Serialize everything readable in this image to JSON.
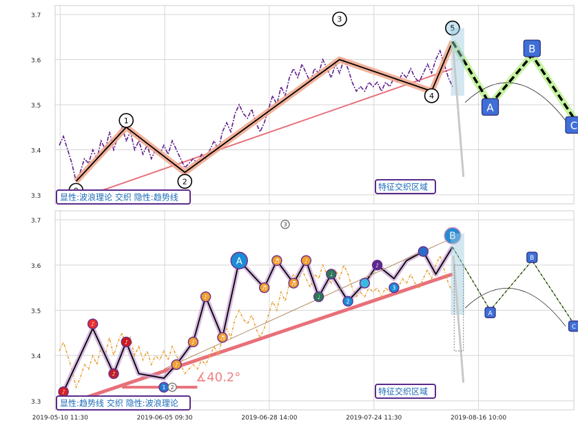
{
  "chart_data": [
    {
      "type": "line",
      "panel": "top",
      "ylim": [
        3.28,
        3.72
      ],
      "yticks": [
        3.3,
        3.4,
        3.5,
        3.6,
        3.7
      ],
      "grid": true,
      "series": [
        {
          "key": "price",
          "values": [
            [
              0.5,
              3.41
            ],
            [
              1,
              3.43
            ],
            [
              1.5,
              3.4
            ],
            [
              2,
              3.37
            ],
            [
              2.5,
              3.33
            ],
            [
              3,
              3.35
            ],
            [
              3.5,
              3.38
            ],
            [
              4,
              3.37
            ],
            [
              4.5,
              3.4
            ],
            [
              5,
              3.38
            ],
            [
              5.5,
              3.42
            ],
            [
              6,
              3.4
            ],
            [
              6.5,
              3.44
            ],
            [
              7,
              3.4
            ],
            [
              7.5,
              3.43
            ],
            [
              8,
              3.45
            ],
            [
              8.5,
              3.42
            ],
            [
              9,
              3.44
            ],
            [
              9.5,
              3.4
            ],
            [
              10,
              3.42
            ],
            [
              10.5,
              3.39
            ],
            [
              11,
              3.41
            ],
            [
              11.5,
              3.38
            ],
            [
              12,
              3.4
            ],
            [
              12.5,
              3.39
            ],
            [
              13,
              3.41
            ],
            [
              13.5,
              3.39
            ],
            [
              14,
              3.42
            ],
            [
              14.5,
              3.4
            ],
            [
              15,
              3.38
            ],
            [
              15.5,
              3.36
            ],
            [
              16,
              3.37
            ],
            [
              16.5,
              3.38
            ],
            [
              17,
              3.37
            ],
            [
              17.5,
              3.39
            ],
            [
              18,
              3.38
            ],
            [
              18.5,
              3.4
            ],
            [
              19,
              3.42
            ],
            [
              19.5,
              3.4
            ],
            [
              20,
              3.44
            ],
            [
              20.5,
              3.46
            ],
            [
              21,
              3.44
            ],
            [
              21.5,
              3.48
            ],
            [
              22,
              3.5
            ],
            [
              22.5,
              3.48
            ],
            [
              23,
              3.47
            ],
            [
              23.5,
              3.49
            ],
            [
              24,
              3.46
            ],
            [
              24.5,
              3.44
            ],
            [
              25,
              3.46
            ],
            [
              25.5,
              3.49
            ],
            [
              26,
              3.52
            ],
            [
              26.5,
              3.5
            ],
            [
              27,
              3.54
            ],
            [
              27.5,
              3.52
            ],
            [
              28,
              3.56
            ],
            [
              28.5,
              3.58
            ],
            [
              29,
              3.56
            ],
            [
              29.5,
              3.59
            ],
            [
              30,
              3.57
            ],
            [
              30.5,
              3.55
            ],
            [
              31,
              3.58
            ],
            [
              31.5,
              3.57
            ],
            [
              32,
              3.6
            ],
            [
              32.5,
              3.58
            ],
            [
              33,
              3.56
            ],
            [
              33.5,
              3.59
            ],
            [
              34,
              3.57
            ],
            [
              34.5,
              3.6
            ],
            [
              35,
              3.58
            ],
            [
              35.5,
              3.55
            ],
            [
              36,
              3.53
            ],
            [
              36.5,
              3.54
            ],
            [
              37,
              3.53
            ],
            [
              37.5,
              3.55
            ],
            [
              38,
              3.54
            ],
            [
              38.5,
              3.55
            ],
            [
              39,
              3.53
            ],
            [
              39.5,
              3.55
            ],
            [
              40,
              3.54
            ],
            [
              40.5,
              3.56
            ],
            [
              41,
              3.55
            ],
            [
              41.5,
              3.57
            ],
            [
              42,
              3.56
            ],
            [
              42.5,
              3.58
            ],
            [
              43,
              3.56
            ],
            [
              43.5,
              3.55
            ],
            [
              44,
              3.57
            ],
            [
              44.5,
              3.59
            ],
            [
              45,
              3.57
            ],
            [
              45.5,
              3.6
            ],
            [
              46,
              3.62
            ],
            [
              46.5,
              3.59
            ],
            [
              47,
              3.56
            ],
            [
              47.5,
              3.54
            ]
          ]
        }
      ],
      "wave": {
        "x": [
          2.5,
          8.5,
          15.5,
          34,
          45,
          47.5
        ],
        "y": [
          3.33,
          3.45,
          3.35,
          3.6,
          3.53,
          3.64
        ],
        "labels": [
          "0",
          "1",
          "2",
          "3",
          "4",
          "5"
        ]
      },
      "wave_label_y": [
        3.31,
        3.465,
        3.33,
        3.69,
        3.52,
        3.67
      ],
      "forecast": {
        "x": [
          47.5,
          52,
          57,
          62
        ],
        "y": [
          3.64,
          3.5,
          3.61,
          3.47
        ],
        "labels": [
          "A",
          "B",
          "C"
        ],
        "label_y": [
          3.495,
          3.625,
          3.455
        ]
      },
      "trend": {
        "x": [
          2.5,
          47.5
        ],
        "y": [
          3.29,
          3.58
        ]
      },
      "arc": {
        "cx": 55,
        "cy": 3.505,
        "rx": 6,
        "ry": 0.055
      },
      "zone_drop": {
        "x": [
          47.8,
          48.8
        ],
        "y": [
          3.6,
          3.34
        ]
      },
      "legend_text": "显性:波浪理论 交织 隐性:趋势线",
      "zone_text": "特征交织区域"
    },
    {
      "type": "line",
      "panel": "bottom",
      "ylim": [
        3.28,
        3.72
      ],
      "yticks": [
        3.3,
        3.4,
        3.5,
        3.6,
        3.7
      ],
      "xtick_labels": [
        "2019-05-10 11:30",
        "2019-06-05 09:30",
        "2019-06-28 14:00",
        "2019-07-24 11:30",
        "2019-08-16 10:00"
      ],
      "xtick_positions": [
        0,
        12.5,
        25,
        37.5,
        50
      ],
      "grid": true,
      "series": [
        {
          "key": "price",
          "values": [
            [
              0.5,
              3.41
            ],
            [
              1,
              3.43
            ],
            [
              1.5,
              3.4
            ],
            [
              2,
              3.37
            ],
            [
              2.5,
              3.33
            ],
            [
              3,
              3.35
            ],
            [
              3.5,
              3.38
            ],
            [
              4,
              3.37
            ],
            [
              4.5,
              3.4
            ],
            [
              5,
              3.38
            ],
            [
              5.5,
              3.42
            ],
            [
              6,
              3.4
            ],
            [
              6.5,
              3.44
            ],
            [
              7,
              3.4
            ],
            [
              7.5,
              3.43
            ],
            [
              8,
              3.45
            ],
            [
              8.5,
              3.42
            ],
            [
              9,
              3.44
            ],
            [
              9.5,
              3.4
            ],
            [
              10,
              3.42
            ],
            [
              10.5,
              3.39
            ],
            [
              11,
              3.41
            ],
            [
              11.5,
              3.38
            ],
            [
              12,
              3.4
            ],
            [
              12.5,
              3.39
            ],
            [
              13,
              3.41
            ],
            [
              13.5,
              3.39
            ],
            [
              14,
              3.42
            ],
            [
              14.5,
              3.4
            ],
            [
              15,
              3.38
            ],
            [
              15.5,
              3.36
            ],
            [
              16,
              3.37
            ],
            [
              16.5,
              3.38
            ],
            [
              17,
              3.37
            ],
            [
              17.5,
              3.39
            ],
            [
              18,
              3.38
            ],
            [
              18.5,
              3.4
            ],
            [
              19,
              3.42
            ],
            [
              19.5,
              3.4
            ],
            [
              20,
              3.44
            ],
            [
              20.5,
              3.46
            ],
            [
              21,
              3.44
            ],
            [
              21.5,
              3.48
            ],
            [
              22,
              3.5
            ],
            [
              22.5,
              3.48
            ],
            [
              23,
              3.47
            ],
            [
              23.5,
              3.49
            ],
            [
              24,
              3.46
            ],
            [
              24.5,
              3.44
            ],
            [
              25,
              3.46
            ],
            [
              25.5,
              3.49
            ],
            [
              26,
              3.52
            ],
            [
              26.5,
              3.5
            ],
            [
              27,
              3.54
            ],
            [
              27.5,
              3.52
            ],
            [
              28,
              3.56
            ],
            [
              28.5,
              3.58
            ],
            [
              29,
              3.56
            ],
            [
              29.5,
              3.59
            ],
            [
              30,
              3.57
            ],
            [
              30.5,
              3.55
            ],
            [
              31,
              3.58
            ],
            [
              31.5,
              3.57
            ],
            [
              32,
              3.6
            ],
            [
              32.5,
              3.58
            ],
            [
              33,
              3.56
            ],
            [
              33.5,
              3.59
            ],
            [
              34,
              3.57
            ],
            [
              34.5,
              3.6
            ],
            [
              35,
              3.58
            ],
            [
              35.5,
              3.55
            ],
            [
              36,
              3.53
            ],
            [
              36.5,
              3.54
            ],
            [
              37,
              3.53
            ],
            [
              37.5,
              3.55
            ],
            [
              38,
              3.54
            ],
            [
              38.5,
              3.55
            ],
            [
              39,
              3.53
            ],
            [
              39.5,
              3.55
            ],
            [
              40,
              3.54
            ],
            [
              40.5,
              3.56
            ],
            [
              41,
              3.55
            ],
            [
              41.5,
              3.57
            ],
            [
              42,
              3.56
            ],
            [
              42.5,
              3.58
            ],
            [
              43,
              3.56
            ],
            [
              43.5,
              3.55
            ],
            [
              44,
              3.57
            ],
            [
              44.5,
              3.59
            ],
            [
              45,
              3.57
            ],
            [
              45.5,
              3.6
            ],
            [
              46,
              3.62
            ],
            [
              46.5,
              3.59
            ],
            [
              47,
              3.56
            ],
            [
              47.5,
              3.54
            ]
          ]
        }
      ],
      "zigzag": {
        "x": [
          1,
          4.5,
          7,
          8.5,
          10,
          13,
          14.5,
          16.5,
          18,
          20,
          22,
          25,
          26.5,
          28.5,
          30,
          31.5,
          33,
          35,
          37,
          38.5,
          40.5,
          42,
          44,
          45.5,
          47.5
        ],
        "y": [
          3.32,
          3.46,
          3.36,
          3.43,
          3.36,
          3.35,
          3.38,
          3.43,
          3.53,
          3.44,
          3.61,
          3.55,
          3.61,
          3.56,
          3.61,
          3.53,
          3.58,
          3.52,
          3.56,
          3.6,
          3.57,
          3.61,
          3.63,
          3.58,
          3.64
        ]
      },
      "markers_x": [
        1,
        4.5,
        7,
        8.5,
        13,
        14.5,
        16.5,
        18,
        20,
        22,
        25,
        26.5,
        28.5,
        30,
        31.5,
        33,
        35,
        37,
        38.5,
        40.5,
        44
      ],
      "markers_y": [
        3.32,
        3.47,
        3.36,
        3.43,
        3.33,
        3.38,
        3.43,
        3.53,
        3.44,
        3.61,
        3.55,
        3.61,
        3.56,
        3.61,
        3.53,
        3.58,
        3.52,
        3.56,
        3.6,
        3.55,
        3.63
      ],
      "marker_labels": [
        "♪",
        "♪",
        "♪",
        "♪",
        "1",
        "♪",
        "♪",
        "♪",
        "♬",
        "A",
        "♬",
        "♬",
        "♬",
        "♪",
        "♩",
        "♩",
        "2",
        "",
        "♪",
        "3",
        ""
      ],
      "wave_label": {
        "x": [
          14,
          27.5,
          47.5
        ],
        "y": [
          3.33,
          3.69,
          3.665
        ],
        "labels": [
          "2",
          "3",
          "B"
        ]
      },
      "forecast": {
        "x": [
          47.5,
          52,
          57,
          62
        ],
        "y": [
          3.64,
          3.5,
          3.61,
          3.47
        ],
        "labels": [
          "A",
          "B",
          "C"
        ],
        "label_y": [
          3.495,
          3.617,
          3.465
        ]
      },
      "trend": {
        "x": [
          2.5,
          47.5
        ],
        "y": [
          3.3,
          3.58
        ]
      },
      "arc": {
        "cx": 55,
        "cy": 3.505,
        "rx": 6,
        "ry": 0.055
      },
      "angle_label": "∡40.2°",
      "legend_text": "显性:趋势线 交织 隐性:波浪理论",
      "zone_text": "特征交织区域"
    }
  ]
}
